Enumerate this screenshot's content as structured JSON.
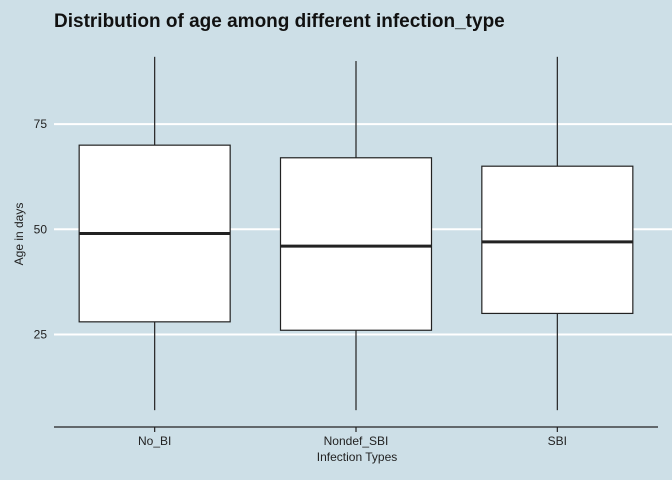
{
  "chart_data": {
    "type": "boxplot",
    "title": "Distribution of age among different infection_type",
    "xlabel": "Infection Types",
    "ylabel": "Age in days",
    "categories": [
      "No_BI",
      "Nondef_SBI",
      "SBI"
    ],
    "boxes": [
      {
        "category": "No_BI",
        "min": 7,
        "q1": 28,
        "median": 49,
        "q3": 70,
        "max": 91
      },
      {
        "category": "Nondef_SBI",
        "min": 7,
        "q1": 26,
        "median": 46,
        "q3": 67,
        "max": 90
      },
      {
        "category": "SBI",
        "min": 7,
        "q1": 30,
        "median": 47,
        "q3": 65,
        "max": 91
      }
    ],
    "yticks": [
      25,
      50,
      75
    ],
    "ylim": [
      3,
      95
    ],
    "grid": "horizontal",
    "colors": {
      "background": "#cddfe7",
      "grid": "#ffffff",
      "box_fill": "#ffffff",
      "box_stroke": "#222222",
      "median": "#222222",
      "axis": "#222222"
    }
  }
}
